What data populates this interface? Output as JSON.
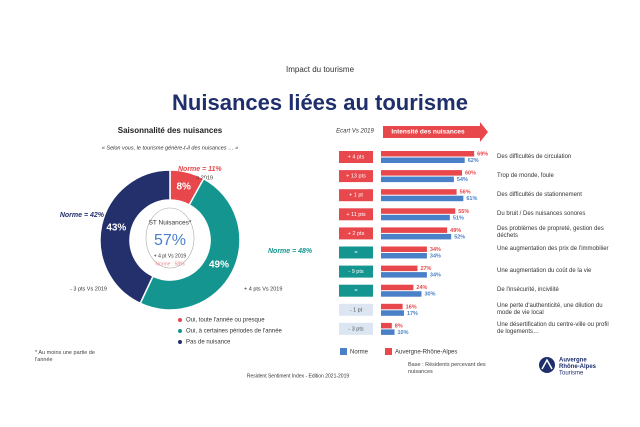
{
  "header": {
    "kicker": "Impact du tourisme",
    "title": "Nuisances liées au tourisme"
  },
  "chart_data": [
    {
      "type": "donut",
      "title": "Saisonnalité des nuisances",
      "subtitle": "« Selon vous, le tourisme génère-t-il des nuisances … »",
      "categories": [
        "Oui, toute l'année ou presque",
        "Oui, à certaines périodes de l'année",
        "Pas de nuisance"
      ],
      "values": [
        8,
        49,
        43
      ],
      "value_labels": [
        "8%",
        "49%",
        "43%"
      ],
      "colors": [
        "#e8474c",
        "#14958f",
        "#23306b"
      ],
      "norm_labels": [
        "Norme = 11%",
        "Norme = 48%",
        "Norme = 42%"
      ],
      "change_labels": [
        "= 2019",
        "+ 4 pts Vs 2019",
        "- 3 pts Vs 2019"
      ],
      "center": {
        "label": "ST Nuisances*",
        "value": 57,
        "value_label": "57%",
        "change": "+ 4 pt Vs 2019",
        "norm": "Norme : 58%"
      },
      "footnote": "* Au moins une partie de l'année",
      "source": "Resident Sentiment Index - Edition 2021-2019"
    },
    {
      "type": "bar",
      "orientation": "horizontal",
      "title": "Intensité des nuisances",
      "change_title": "Ecart Vs 2019",
      "categories": [
        "Des difficultés de circulation",
        "Trop de monde, foule",
        "Des difficultés de stationnement",
        "Du bruit / Des nuisances sonores",
        "Des problèmes de propreté, gestion des déchets",
        "Une augmentation des prix de l'immobilier",
        "Une augmentation du coût de la vie",
        "De l'insécurité, incivilité",
        "Une perte d'authenticité, une dilution du mode de vie local",
        "Une désertification du centre-ville ou profil de logements…"
      ],
      "changes": [
        "+ 4 pts",
        "+ 13 pts",
        "+ 1 pt",
        "+ 11 pts",
        "+ 2 pts",
        "=",
        "- 9 pts",
        "=",
        "- 1 pt",
        "- 3 pts"
      ],
      "change_colors": [
        "#e8474c",
        "#e8474c",
        "#e8474c",
        "#e8474c",
        "#e8474c",
        "#14958f",
        "#14958f",
        "#14958f",
        "#dce6f2",
        "#dce6f2"
      ],
      "series": [
        {
          "name": "Auvergne-Rhône-Alpes",
          "color": "#e8474c",
          "values": [
            69,
            60,
            56,
            55,
            49,
            34,
            27,
            24,
            16,
            8
          ],
          "value_labels": [
            "69%",
            "60%",
            "56%",
            "55%",
            "49%",
            "34%",
            "27%",
            "24%",
            "16%",
            "8%"
          ]
        },
        {
          "name": "Norme",
          "color": "#4a80c8",
          "values": [
            62,
            54,
            61,
            51,
            52,
            34,
            34,
            30,
            17,
            10
          ],
          "value_labels": [
            "62%",
            "54%",
            "61%",
            "51%",
            "52%",
            "34%",
            "34%",
            "30%",
            "17%",
            "10%"
          ]
        }
      ],
      "base_note": "Base : Résidents percevant des nuisances"
    }
  ],
  "logo": {
    "lines": [
      "Auvergne",
      "Rhône-Alpes",
      "Tourisme"
    ]
  }
}
